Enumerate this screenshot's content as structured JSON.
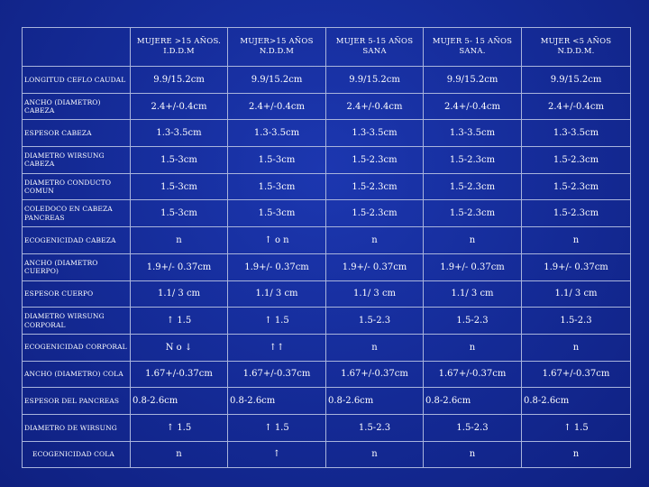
{
  "headers": [
    "",
    "MUJERE >15 AÑOS. I.D.D.M",
    "MUJER>15 AÑOS N.D.D.M",
    "MUJER 5-15 AÑOS SANA",
    "MUJER 5- 15 AÑOS SANA.",
    "MUJER <5 AÑOS N.D.D.M."
  ],
  "rows": [
    {
      "label": "LONGITUD CEFLO CAUDAL",
      "values": [
        "9.9/15.2cm",
        "9.9/15.2cm",
        "9.9/15.2cm",
        "9.9/15.2cm",
        "9.9/15.2cm"
      ]
    },
    {
      "label": "ANCHO (DIAMETRO) CABEZA",
      "values": [
        "2.4+/-0.4cm",
        "2.4+/-0.4cm",
        "2.4+/-0.4cm",
        "2.4+/-0.4cm",
        "2.4+/-0.4cm"
      ]
    },
    {
      "label": "ESPESOR CABEZA",
      "values": [
        "1.3-3.5cm",
        "1.3-3.5cm",
        "1.3-3.5cm",
        "1.3-3.5cm",
        "1.3-3.5cm"
      ]
    },
    {
      "label": "DIAMETRO WIRSUNG CABEZA",
      "values": [
        "1.5-3cm",
        "1.5-3cm",
        "1.5-2.3cm",
        "1.5-2.3cm",
        "1.5-2.3cm"
      ]
    },
    {
      "label": "DIAMETRO CONDUCTO COMUN",
      "values": [
        "1.5-3cm",
        "1.5-3cm",
        "1.5-2.3cm",
        "1.5-2.3cm",
        "1.5-2.3cm"
      ]
    },
    {
      "label": "COLEDOCO EN CABEZA PANCREAS",
      "values": [
        "1.5-3cm",
        "1.5-3cm",
        "1.5-2.3cm",
        "1.5-2.3cm",
        "1.5-2.3cm"
      ]
    },
    {
      "label": "ECOGENICIDAD CABEZA",
      "values": [
        "n",
        "↑ o n",
        "n",
        "n",
        "n"
      ]
    },
    {
      "label": "ANCHO (DIAMETRO CUERPO)",
      "values": [
        "1.9+/- 0.37cm",
        "1.9+/- 0.37cm",
        "1.9+/- 0.37cm",
        "1.9+/- 0.37cm",
        "1.9+/- 0.37cm"
      ]
    },
    {
      "label": "ESPESOR CUERPO",
      "values": [
        "1.1/ 3 cm",
        "1.1/ 3 cm",
        "1.1/ 3 cm",
        "1.1/ 3 cm",
        "1.1/ 3 cm"
      ]
    },
    {
      "label": "DIAMETRO WIRSUNG CORPORAL",
      "values": [
        "↑ 1.5",
        "↑ 1.5",
        "1.5-2.3",
        "1.5-2.3",
        "1.5-2.3"
      ]
    },
    {
      "label": "ECOGENICIDAD CORPORAL",
      "values": [
        "N o ↓",
        "↑↑",
        "n",
        "n",
        "n"
      ]
    },
    {
      "label": "ANCHO (DIAMETRO) COLA",
      "values": [
        "1.67+/-0.37cm",
        "1.67+/-0.37cm",
        "1.67+/-0.37cm",
        "1.67+/-0.37cm",
        "1.67+/-0.37cm"
      ]
    },
    {
      "label": "ESPESOR DEL PANCREAS",
      "values": [
        "0.8-2.6cm",
        "0.8-2.6cm",
        "0.8-2.6cm",
        "0.8-2.6cm",
        "0.8-2.6cm"
      ]
    },
    {
      "label": "DIAMETRO DE WIRSUNG",
      "values": [
        "↑ 1.5",
        "↑ 1.5",
        "1.5-2.3",
        "1.5-2.3",
        "↑ 1.5"
      ]
    },
    {
      "label": "ECOGENICIDAD COLA",
      "values": [
        "n",
        "↑",
        "n",
        "n",
        "n"
      ]
    }
  ]
}
